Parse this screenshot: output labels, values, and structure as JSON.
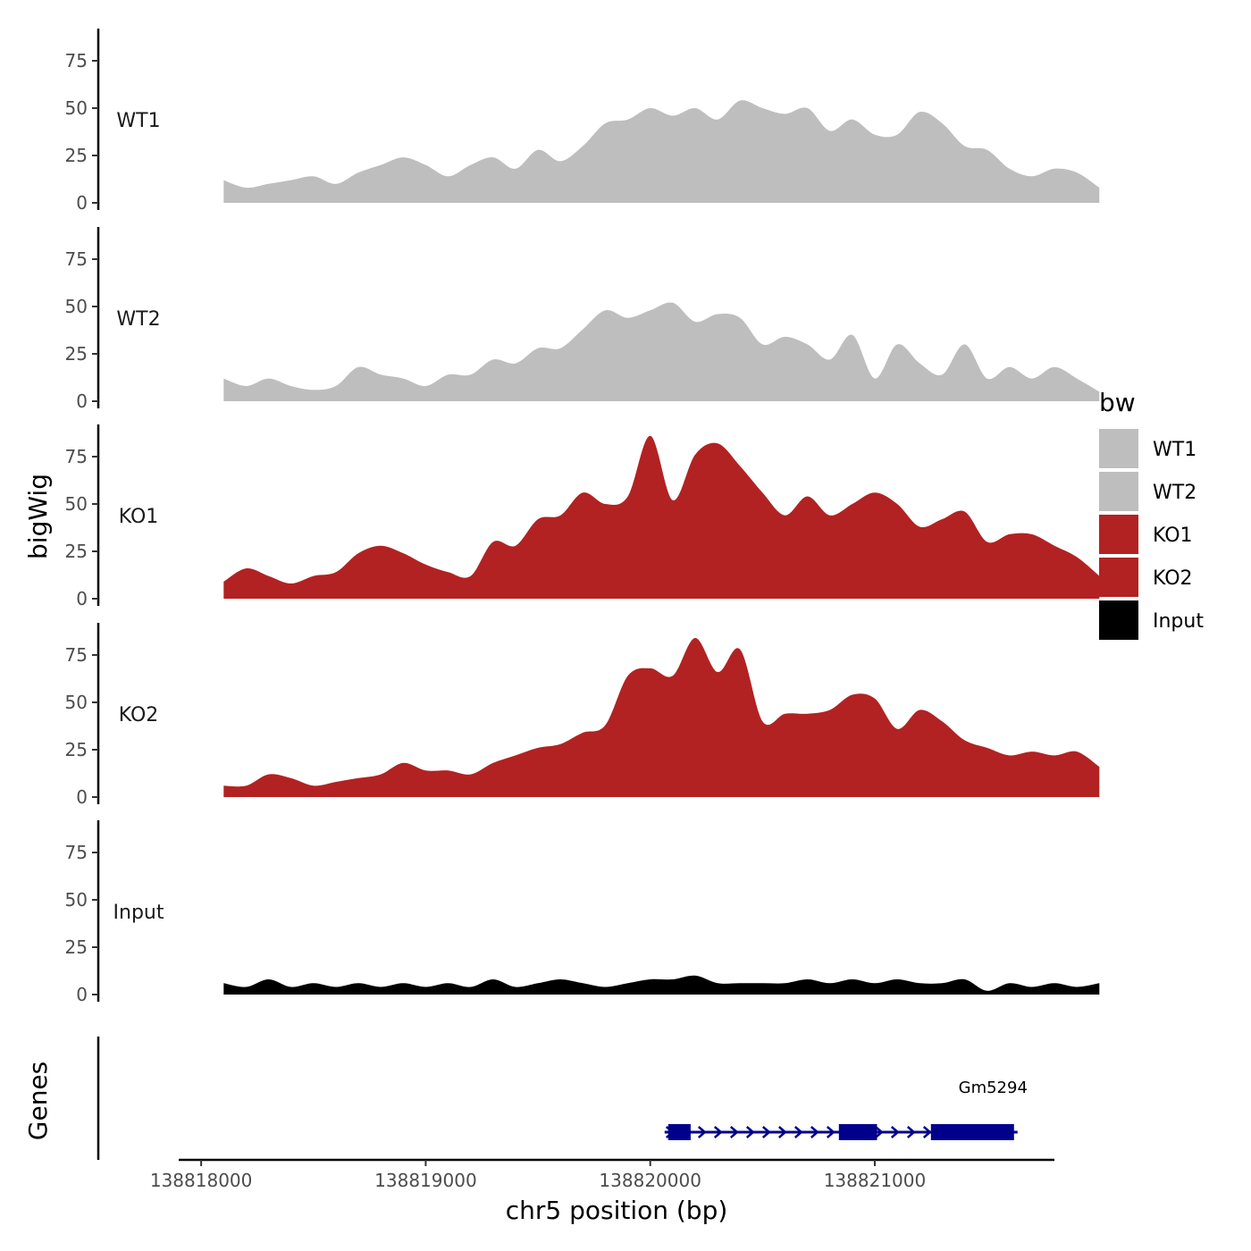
{
  "chart_data": {
    "type": "area",
    "xlabel": "chr5 position (bp)",
    "ylabel": "bigWig",
    "gene_track_label": "Genes",
    "xlim": [
      138817900,
      138821800
    ],
    "x_ticks": [
      138818000,
      138819000,
      138820000,
      138821000
    ],
    "x_tick_labels": [
      "138818000",
      "138819000",
      "138820000",
      "138821000"
    ],
    "ylim": [
      0,
      92
    ],
    "y_ticks": [
      0,
      25,
      50,
      75
    ],
    "y_tick_labels": [
      "0",
      "25",
      "50",
      "75"
    ],
    "legend": {
      "title": "bw",
      "position": "right",
      "entries": [
        {
          "label": "WT1",
          "color": "#bebebe"
        },
        {
          "label": "WT2",
          "color": "#bebebe"
        },
        {
          "label": "KO1",
          "color": "#b22222"
        },
        {
          "label": "KO2",
          "color": "#b22222"
        },
        {
          "label": "Input",
          "color": "#000000"
        }
      ]
    },
    "x_start": 138818100,
    "x_step": 100,
    "series": [
      {
        "name": "WT1",
        "color": "#bebebe",
        "values": [
          12,
          8,
          10,
          12,
          14,
          10,
          16,
          20,
          24,
          20,
          14,
          20,
          24,
          18,
          28,
          22,
          30,
          42,
          44,
          50,
          46,
          50,
          44,
          54,
          50,
          47,
          50,
          38,
          44,
          36,
          36,
          48,
          42,
          30,
          28,
          18,
          14,
          18,
          16,
          8
        ]
      },
      {
        "name": "WT2",
        "color": "#bebebe",
        "values": [
          12,
          8,
          12,
          8,
          6,
          8,
          18,
          14,
          12,
          8,
          14,
          14,
          22,
          20,
          28,
          28,
          38,
          48,
          44,
          48,
          52,
          42,
          46,
          44,
          30,
          34,
          30,
          22,
          35,
          12,
          30,
          20,
          14,
          30,
          12,
          18,
          12,
          18,
          12,
          5
        ]
      },
      {
        "name": "KO1",
        "color": "#b22222",
        "values": [
          9,
          16,
          12,
          8,
          12,
          14,
          24,
          28,
          24,
          18,
          14,
          12,
          30,
          28,
          42,
          44,
          56,
          50,
          54,
          86,
          52,
          76,
          82,
          70,
          56,
          44,
          54,
          44,
          50,
          56,
          50,
          38,
          42,
          46,
          30,
          34,
          34,
          28,
          22,
          12
        ]
      },
      {
        "name": "KO2",
        "color": "#b22222",
        "values": [
          6,
          6,
          12,
          10,
          6,
          8,
          10,
          12,
          18,
          14,
          14,
          12,
          18,
          22,
          26,
          28,
          34,
          38,
          64,
          68,
          64,
          84,
          66,
          78,
          40,
          44,
          44,
          46,
          54,
          52,
          36,
          46,
          40,
          30,
          26,
          22,
          24,
          22,
          24,
          16
        ]
      },
      {
        "name": "Input",
        "color": "#000000",
        "values": [
          6,
          4,
          8,
          4,
          6,
          4,
          6,
          4,
          6,
          4,
          6,
          4,
          8,
          4,
          6,
          8,
          6,
          4,
          6,
          8,
          8,
          10,
          6,
          6,
          6,
          6,
          8,
          6,
          8,
          6,
          8,
          6,
          6,
          8,
          2,
          6,
          4,
          6,
          4,
          6
        ]
      }
    ],
    "genes": [
      {
        "name": "Gm5294",
        "start": 138820080,
        "end": 138821620,
        "strand": "+",
        "exons": [
          [
            138820080,
            138820180
          ],
          [
            138820840,
            138821010
          ],
          [
            138821250,
            138821620
          ]
        ]
      }
    ]
  }
}
